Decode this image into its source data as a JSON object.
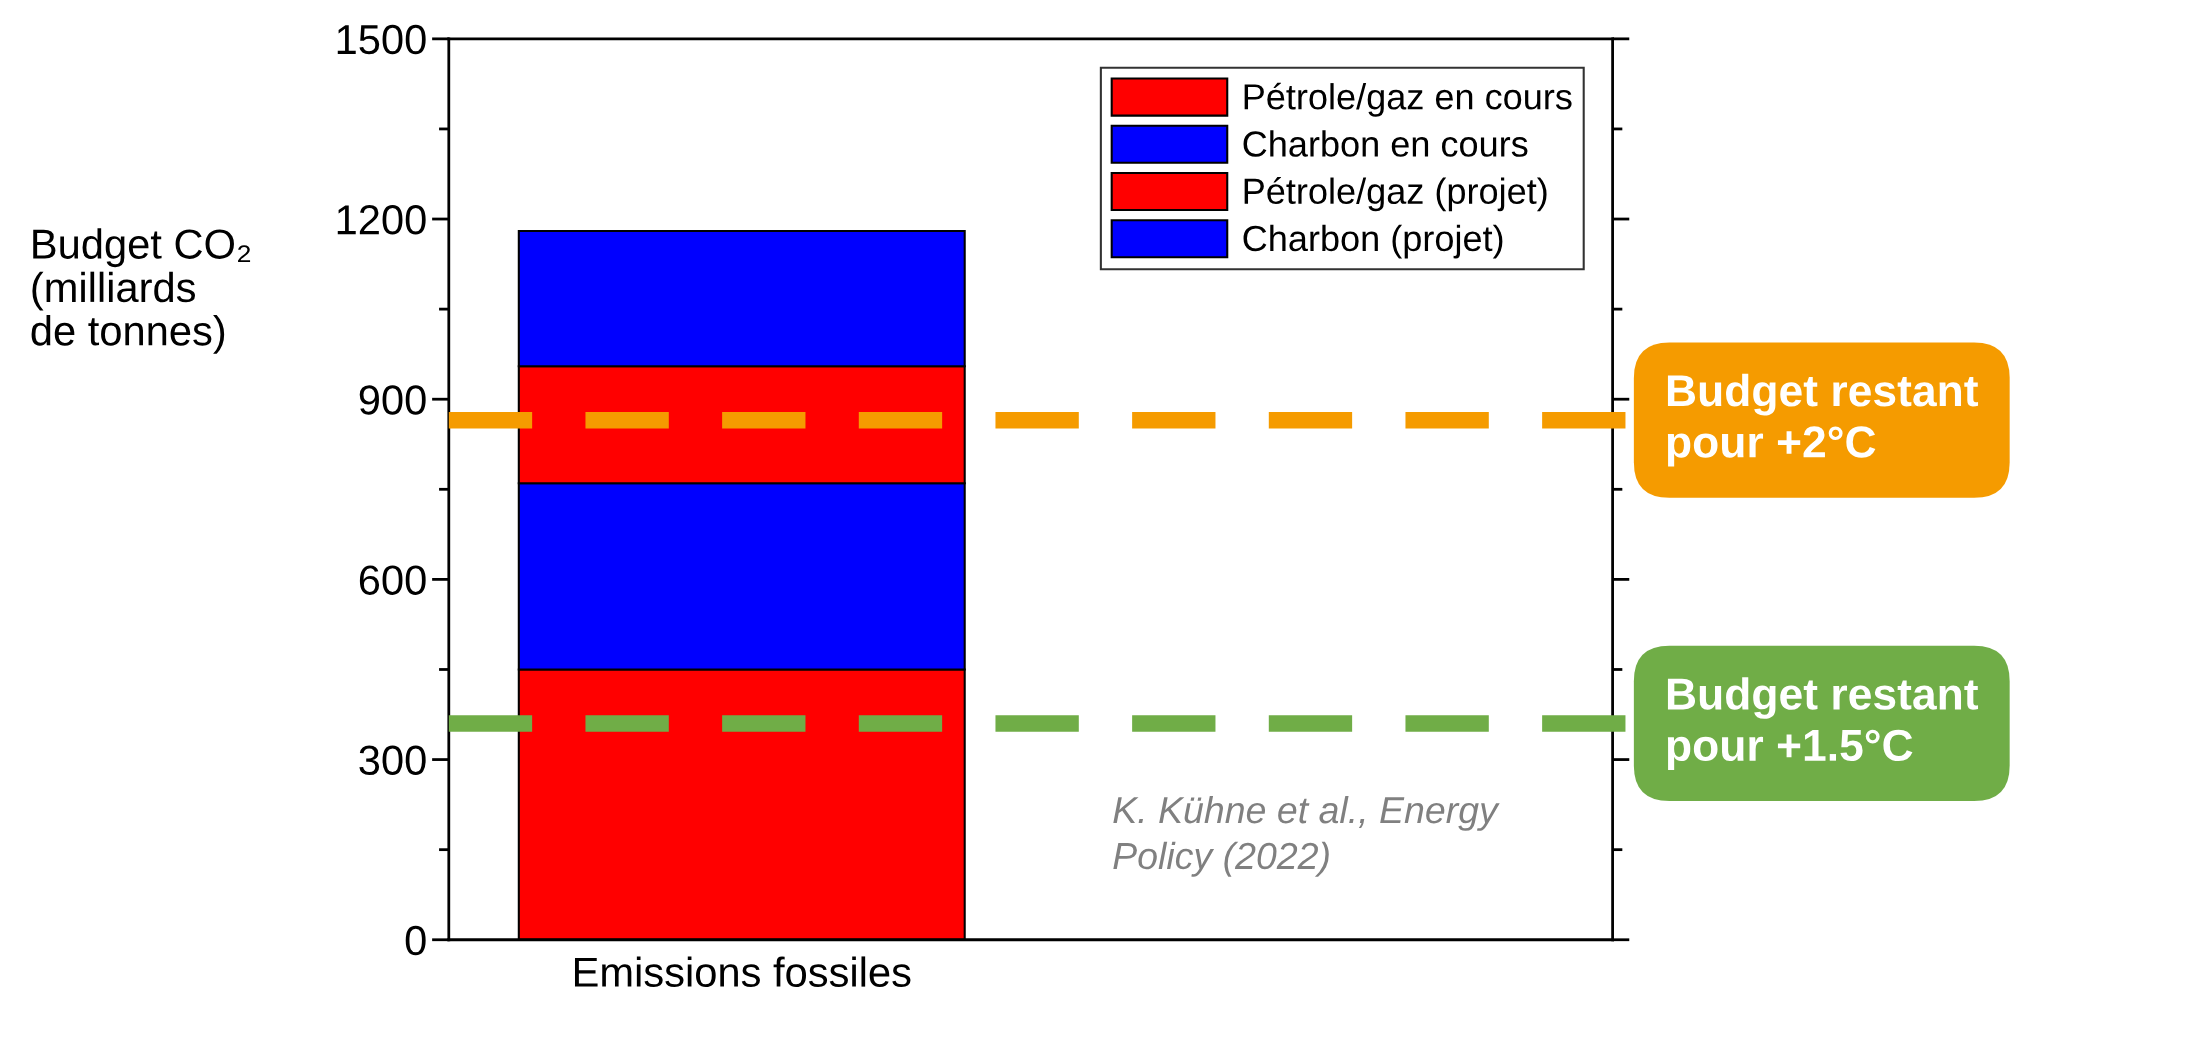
{
  "chart_data": {
    "type": "bar",
    "stacked": true,
    "ylabel": "Budget CO₂\n(milliards\nde tonnes)",
    "categories": [
      "Emissions fossiles"
    ],
    "series": [
      {
        "name": "Pétrole/gaz en cours",
        "color": "#ff0000",
        "values": [
          450
        ]
      },
      {
        "name": "Charbon en cours",
        "color": "#0000ff",
        "values": [
          310
        ]
      },
      {
        "name": "Pétrole/gaz (projet)",
        "color": "#ff0000",
        "values": [
          195
        ]
      },
      {
        "name": "Charbon (projet)",
        "color": "#0000ff",
        "values": [
          225
        ]
      }
    ],
    "ylim": [
      0,
      1500
    ],
    "yticks": [
      0,
      300,
      600,
      900,
      1200,
      1500
    ],
    "grid": false,
    "legend": "top right",
    "ref_lines": [
      {
        "axis": "y",
        "value": 865,
        "label": "Budget restant\npour +2°C",
        "color": "#f59b00",
        "line_style": "dashed"
      },
      {
        "axis": "y",
        "value": 360,
        "label": "Budget restant\npour +1.5°C",
        "color": "#70ad47",
        "line_style": "dashed"
      }
    ],
    "annotations": [
      "K. Kühne et al., Energy\nPolicy (2022)"
    ]
  }
}
